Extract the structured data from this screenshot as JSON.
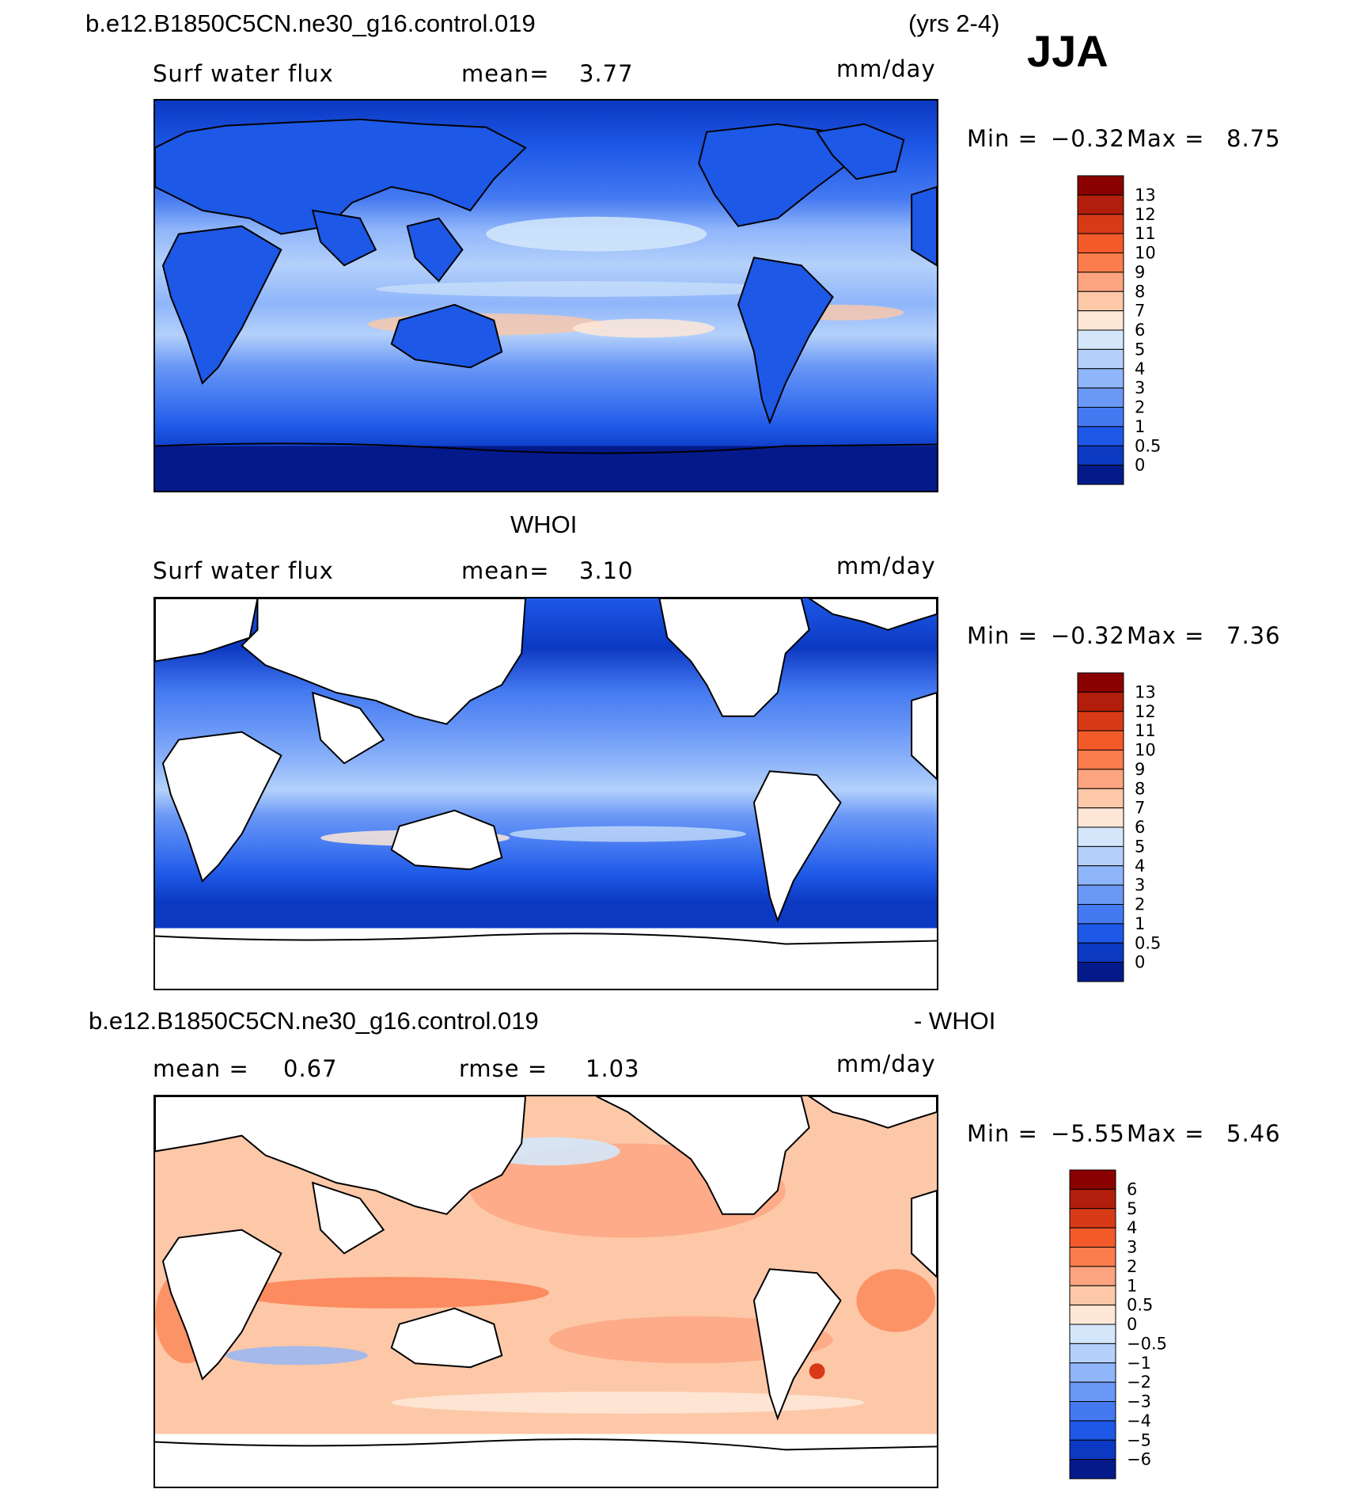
{
  "header": {
    "case_title": "b.e12.B1850C5CN.ne30_g16.control.019",
    "years": "(yrs 2-4)",
    "season": "JJA"
  },
  "panels": [
    {
      "id": "model",
      "section_title": "",
      "variable": "Surf water flux",
      "stat1_label": "mean=",
      "stat1_value": "3.77",
      "stat2_label": "",
      "stat2_value": "",
      "units": "mm/day",
      "min_label": "Min =",
      "min_value": "−0.32",
      "max_label": "Max =",
      "max_value": "8.75",
      "colorbar": {
        "labels": [
          "13",
          "12",
          "11",
          "10",
          "9",
          "8",
          "7",
          "6",
          "5",
          "4",
          "3",
          "2",
          "1",
          "0.5",
          "0"
        ],
        "colors": [
          "#8b0000",
          "#b21e0b",
          "#d83a17",
          "#f25a2a",
          "#fb7c4c",
          "#fca47f",
          "#fdc8a8",
          "#fee7d7",
          "#d4e7fa",
          "#b4d1fb",
          "#8fb5fa",
          "#6a98f6",
          "#4479f1",
          "#1d58e6",
          "#0c39c2",
          "#041a8a"
        ]
      }
    },
    {
      "id": "obs",
      "section_title": "WHOI",
      "variable": "Surf water flux",
      "stat1_label": "mean=",
      "stat1_value": "3.10",
      "stat2_label": "",
      "stat2_value": "",
      "units": "mm/day",
      "min_label": "Min =",
      "min_value": "−0.32",
      "max_label": "Max =",
      "max_value": "7.36",
      "colorbar": {
        "labels": [
          "13",
          "12",
          "11",
          "10",
          "9",
          "8",
          "7",
          "6",
          "5",
          "4",
          "3",
          "2",
          "1",
          "0.5",
          "0"
        ],
        "colors": [
          "#8b0000",
          "#b21e0b",
          "#d83a17",
          "#f25a2a",
          "#fb7c4c",
          "#fca47f",
          "#fdc8a8",
          "#fee7d7",
          "#d4e7fa",
          "#b4d1fb",
          "#8fb5fa",
          "#6a98f6",
          "#4479f1",
          "#1d58e6",
          "#0c39c2",
          "#041a8a"
        ]
      }
    },
    {
      "id": "diff",
      "section_title": "b.e12.B1850C5CN.ne30_g16.control.019",
      "section_suffix": "- WHOI",
      "variable": "",
      "stat1_label": "mean =",
      "stat1_value": "0.67",
      "stat2_label": "rmse =",
      "stat2_value": "1.03",
      "units": "mm/day",
      "min_label": "Min =",
      "min_value": "−5.55",
      "max_label": "Max =",
      "max_value": "5.46",
      "colorbar": {
        "labels": [
          "6",
          "5",
          "4",
          "3",
          "2",
          "1",
          "0.5",
          "0",
          "−0.5",
          "−1",
          "−2",
          "−3",
          "−4",
          "−5",
          "−6"
        ],
        "colors": [
          "#8b0000",
          "#b21e0b",
          "#d83a17",
          "#f25a2a",
          "#fb7c4c",
          "#fca47f",
          "#fdc8a8",
          "#fee7d7",
          "#d4e7fa",
          "#b4d1fb",
          "#8fb5fa",
          "#6a98f6",
          "#4479f1",
          "#1d58e6",
          "#0c39c2",
          "#041a8a"
        ]
      }
    }
  ],
  "map_style": {
    "land_color_obs": "#ffffff",
    "coast_color": "#000000"
  }
}
